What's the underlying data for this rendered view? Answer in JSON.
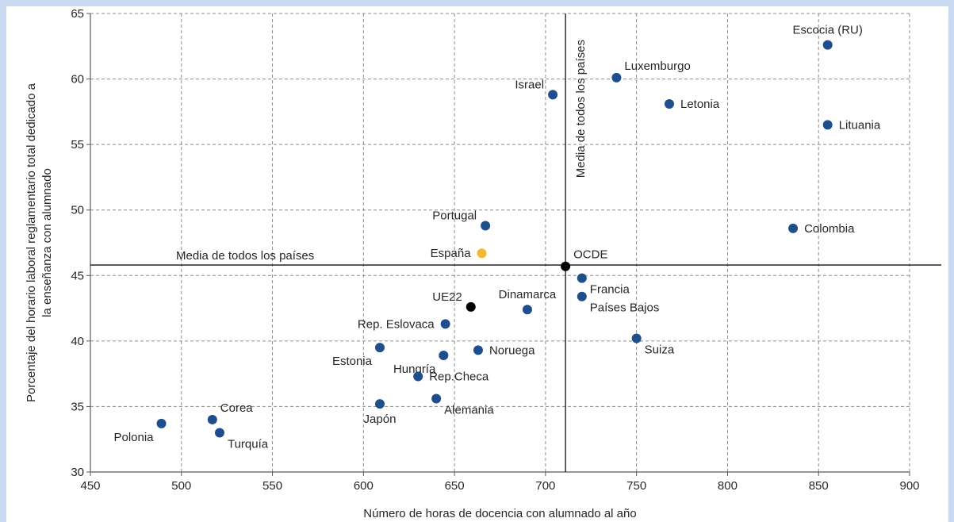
{
  "chart_data": {
    "type": "scatter",
    "xlabel": "Número de horas de docencia con alumnado al año",
    "ylabel_lines": [
      "Porcentaje del horario laboral reglamentario total dedicado a",
      "la enseñanza con alumnado"
    ],
    "xlim": [
      450,
      900
    ],
    "ylim": [
      30,
      65
    ],
    "x_ticks": [
      450,
      500,
      550,
      600,
      650,
      700,
      750,
      800,
      850,
      900
    ],
    "y_ticks": [
      30,
      35,
      40,
      45,
      50,
      55,
      60,
      65
    ],
    "grid": true,
    "reference_lines": {
      "vertical": {
        "x": 711,
        "label": "Media de todos los países"
      },
      "horizontal": {
        "y": 45.8,
        "label": "Media de todos los países"
      }
    },
    "colors": {
      "country": "#1f4e8c",
      "spain": "#f5b731",
      "aggregate": "#000000",
      "grid": "#8c8c8c",
      "axis": "#595959"
    },
    "points": [
      {
        "label": "Escocia (RU)",
        "x": 855,
        "y": 62.6,
        "group": "country",
        "pos": "above"
      },
      {
        "label": "Luxemburgo",
        "x": 739,
        "y": 60.1,
        "group": "country",
        "pos": "upright"
      },
      {
        "label": "Israel",
        "x": 704,
        "y": 58.8,
        "group": "country",
        "pos": "upleft"
      },
      {
        "label": "Letonia",
        "x": 768,
        "y": 58.1,
        "group": "country",
        "pos": "right"
      },
      {
        "label": "Lituania",
        "x": 855,
        "y": 56.5,
        "group": "country",
        "pos": "right"
      },
      {
        "label": "Colombia",
        "x": 836,
        "y": 48.6,
        "group": "country",
        "pos": "right"
      },
      {
        "label": "Portugal",
        "x": 667,
        "y": 48.8,
        "group": "country",
        "pos": "upleft"
      },
      {
        "label": "España",
        "x": 665,
        "y": 46.7,
        "group": "spain",
        "pos": "left"
      },
      {
        "label": "OCDE",
        "x": 711,
        "y": 45.7,
        "group": "aggregate",
        "pos": "upright"
      },
      {
        "label": "Francia",
        "x": 720,
        "y": 44.8,
        "group": "country",
        "pos": "downright"
      },
      {
        "label": "Países Bajos",
        "x": 720,
        "y": 43.4,
        "group": "country",
        "pos": "downright"
      },
      {
        "label": "UE22",
        "x": 659,
        "y": 42.6,
        "group": "aggregate",
        "pos": "upleft"
      },
      {
        "label": "Dinamarca",
        "x": 690,
        "y": 42.4,
        "group": "country",
        "pos": "above"
      },
      {
        "label": "Rep. Eslovaca",
        "x": 645,
        "y": 41.3,
        "group": "country",
        "pos": "left"
      },
      {
        "label": "Suiza",
        "x": 750,
        "y": 40.2,
        "group": "country",
        "pos": "downright"
      },
      {
        "label": "Estonia",
        "x": 609,
        "y": 39.5,
        "group": "country",
        "pos": "downleft"
      },
      {
        "label": "Noruega",
        "x": 663,
        "y": 39.3,
        "group": "country",
        "pos": "right"
      },
      {
        "label": "Hungría",
        "x": 644,
        "y": 38.9,
        "group": "country",
        "pos": "downleft"
      },
      {
        "label": "Rep.Checa",
        "x": 630,
        "y": 37.3,
        "group": "country",
        "pos": "right"
      },
      {
        "label": "Alemania",
        "x": 640,
        "y": 35.6,
        "group": "country",
        "pos": "downright"
      },
      {
        "label": "Japón",
        "x": 609,
        "y": 35.2,
        "group": "country",
        "pos": "below"
      },
      {
        "label": "Corea",
        "x": 517,
        "y": 34.0,
        "group": "country",
        "pos": "upright"
      },
      {
        "label": "Polonia",
        "x": 489,
        "y": 33.7,
        "group": "country",
        "pos": "downleft"
      },
      {
        "label": "Turquía",
        "x": 521,
        "y": 33.0,
        "group": "country",
        "pos": "downright"
      }
    ]
  }
}
